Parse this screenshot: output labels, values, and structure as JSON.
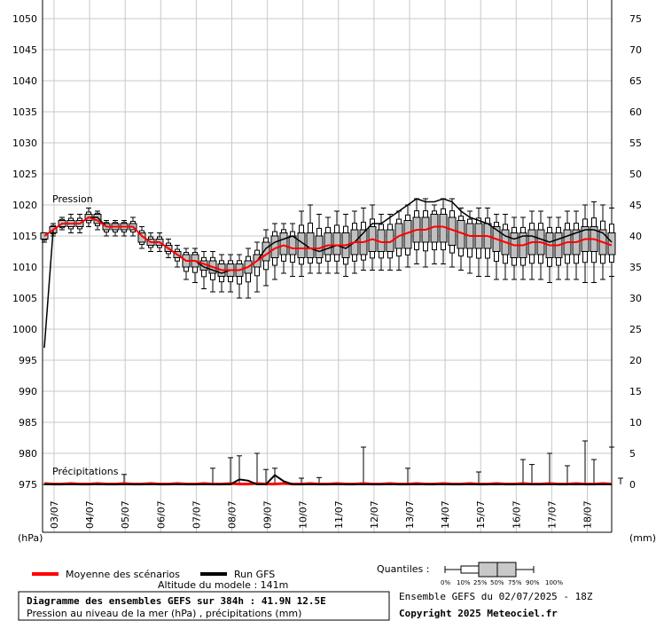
{
  "chart_data": {
    "type": "box-line",
    "pressure_axis": {
      "unit": "(hPa)",
      "min": 975,
      "max": 1050,
      "ticks": [
        975,
        980,
        985,
        990,
        995,
        1000,
        1005,
        1010,
        1015,
        1020,
        1025,
        1030,
        1035,
        1040,
        1045,
        1050
      ]
    },
    "precip_axis": {
      "unit": "(mm)",
      "min": 0,
      "max": 75,
      "ticks": [
        0,
        5,
        10,
        15,
        20,
        25,
        30,
        35,
        40,
        45,
        50,
        55,
        60,
        65,
        70,
        75
      ]
    },
    "date_labels": [
      "03/07",
      "04/07",
      "05/07",
      "06/07",
      "07/07",
      "08/07",
      "09/07",
      "10/07",
      "11/07",
      "12/07",
      "13/07",
      "14/07",
      "15/07",
      "16/07",
      "17/07",
      "18/07"
    ],
    "panel_labels": {
      "pressure": "Pression",
      "precip": "Précipitations"
    },
    "series": [
      {
        "name": "Moyenne des scénarios",
        "color": "#ff0000"
      },
      {
        "name": "Run GFS",
        "color": "#000000"
      }
    ],
    "gfs_pressure": [
      997,
      1016,
      1017,
      1017,
      1017,
      1018,
      1018,
      1016.5,
      1016.5,
      1016.5,
      1016.5,
      1015,
      1014,
      1014,
      1013,
      1012,
      1011,
      1011,
      1010,
      1009.5,
      1009,
      1009.5,
      1009.5,
      1010,
      1011,
      1013,
      1014,
      1014.5,
      1015,
      1014,
      1013,
      1012.5,
      1013,
      1013.5,
      1013,
      1014,
      1015.5,
      1017,
      1017,
      1018,
      1019,
      1020,
      1021,
      1020.5,
      1020.5,
      1021,
      1020.5,
      1019,
      1018,
      1017.5,
      1017,
      1016,
      1015,
      1014.5,
      1015,
      1015,
      1014.5,
      1014,
      1014.5,
      1015,
      1015.5,
      1016,
      1016,
      1015.5,
      1014
    ],
    "mean_pressure": [
      1015,
      1016,
      1017,
      1017,
      1017,
      1018,
      1017.5,
      1016.5,
      1016.5,
      1016.5,
      1016.5,
      1015,
      1014,
      1014,
      1013,
      1012,
      1011,
      1011,
      1010.5,
      1010,
      1009.5,
      1009.5,
      1009.5,
      1010,
      1011,
      1012,
      1013,
      1013.5,
      1013,
      1013,
      1013,
      1013,
      1013.5,
      1013.5,
      1013.5,
      1014,
      1014,
      1014.5,
      1014,
      1014,
      1015,
      1015.5,
      1016,
      1016,
      1016.5,
      1016.5,
      1016,
      1015.5,
      1015,
      1015,
      1015,
      1014.5,
      1014,
      1013.5,
      1013.5,
      1014,
      1014,
      1013.5,
      1013.5,
      1014,
      1014,
      1014.5,
      1014.5,
      1014,
      1013.5
    ],
    "box_q25": [
      1014.5,
      1015.5,
      1016.5,
      1016.5,
      1016.5,
      1017.5,
      1017,
      1016,
      1016,
      1016,
      1016,
      1014,
      1013.5,
      1013.5,
      1012.5,
      1011.5,
      1010,
      1010,
      1009.5,
      1009,
      1008.5,
      1008.5,
      1008.5,
      1009,
      1010,
      1011,
      1011.5,
      1012,
      1012,
      1011.5,
      1011.5,
      1011.5,
      1012,
      1012,
      1011.5,
      1012,
      1012,
      1012.5,
      1012.5,
      1012.5,
      1013,
      1013,
      1014,
      1014,
      1014,
      1014,
      1013.5,
      1013,
      1013,
      1013,
      1013,
      1012.5,
      1012,
      1011.5,
      1011.5,
      1012,
      1012,
      1011.5,
      1011.5,
      1012,
      1012,
      1012.5,
      1012.5,
      1012,
      1012
    ],
    "box_q75": [
      1015.5,
      1016.5,
      1017.5,
      1017.5,
      1017.5,
      1018.5,
      1018.5,
      1017,
      1017,
      1017,
      1017,
      1015.5,
      1014.5,
      1014.5,
      1013.5,
      1012.5,
      1012,
      1012,
      1011,
      1011,
      1010.5,
      1010.5,
      1010.5,
      1011,
      1012,
      1014,
      1015,
      1015.5,
      1015,
      1015.5,
      1015.5,
      1015,
      1015.5,
      1015.5,
      1015.5,
      1016,
      1016,
      1016.5,
      1016,
      1016,
      1017,
      1017.5,
      1018,
      1018,
      1018.5,
      1018.5,
      1018,
      1017.5,
      1017,
      1017,
      1017,
      1016.5,
      1016,
      1015.5,
      1015.5,
      1016,
      1016,
      1015.5,
      1015.5,
      1016,
      1016,
      1016.5,
      1016.5,
      1016,
      1015.5
    ],
    "whisker_min": [
      1014,
      1015,
      1016,
      1015.5,
      1015.5,
      1016.5,
      1016,
      1015,
      1015,
      1015,
      1015,
      1013,
      1012.5,
      1012.5,
      1011.5,
      1010,
      1008,
      1007.5,
      1006.5,
      1006,
      1006,
      1006,
      1005,
      1005,
      1006,
      1007,
      1008,
      1009,
      1008.5,
      1008.5,
      1009,
      1009,
      1009,
      1009,
      1008.5,
      1009,
      1009.5,
      1009.5,
      1009.5,
      1009.5,
      1009.5,
      1010,
      1010.5,
      1010,
      1010.5,
      1010.5,
      1010,
      1009.5,
      1009,
      1008.5,
      1008.5,
      1008,
      1008,
      1008,
      1008,
      1008,
      1008,
      1007.5,
      1008,
      1008,
      1008,
      1007.5,
      1007.5,
      1008,
      1008.5
    ],
    "whisker_max": [
      1015.5,
      1017,
      1018,
      1018.5,
      1018.5,
      1019.5,
      1019,
      1017.5,
      1017.5,
      1017.5,
      1018,
      1016.5,
      1015.5,
      1015.5,
      1014.5,
      1013.5,
      1013,
      1013,
      1012.5,
      1012.5,
      1012,
      1012,
      1012,
      1013,
      1014,
      1016,
      1017,
      1017,
      1017,
      1019,
      1020,
      1018.5,
      1018,
      1019,
      1018.5,
      1019,
      1019.5,
      1020,
      1018.5,
      1018.5,
      1019,
      1020,
      1021,
      1021,
      1020,
      1021,
      1021,
      1019.5,
      1019,
      1019.5,
      1019.5,
      1018.5,
      1018.5,
      1018,
      1018,
      1019,
      1019,
      1018,
      1018,
      1019,
      1019,
      1020,
      1020.5,
      1020,
      1019.5
    ],
    "precip_bars": [
      {
        "i": 9,
        "v": 1.6
      },
      {
        "i": 19,
        "v": 2.6
      },
      {
        "i": 21,
        "v": 4.3
      },
      {
        "i": 22,
        "v": 4.6
      },
      {
        "i": 24,
        "v": 5.0
      },
      {
        "i": 25,
        "v": 2.4
      },
      {
        "i": 26,
        "v": 2.6
      },
      {
        "i": 29,
        "v": 1.0
      },
      {
        "i": 31,
        "v": 1.1
      },
      {
        "i": 36,
        "v": 6.0
      },
      {
        "i": 41,
        "v": 2.6
      },
      {
        "i": 49,
        "v": 2.0
      },
      {
        "i": 54,
        "v": 4.0
      },
      {
        "i": 55,
        "v": 3.2
      },
      {
        "i": 57,
        "v": 5.0
      },
      {
        "i": 59,
        "v": 3.0
      },
      {
        "i": 61,
        "v": 7.0
      },
      {
        "i": 62,
        "v": 4.0
      },
      {
        "i": 64,
        "v": 6.0
      },
      {
        "i": 65,
        "v": 1.0
      }
    ],
    "gfs_precip_bumps": [
      {
        "i": 22,
        "v": 0.8
      },
      {
        "i": 23,
        "v": 0.6
      },
      {
        "i": 26,
        "v": 1.5
      },
      {
        "i": 27,
        "v": 0.5
      }
    ]
  },
  "legend": {
    "mean_label": "Moyenne des scénarios",
    "gfs_label": "Run GFS",
    "altitude": "Altitude du modele : 141m",
    "quantiles_title": "Quantiles :",
    "quantile_labels": [
      "0%",
      "10%",
      "25%",
      "50%",
      "75%",
      "90%",
      "100%"
    ]
  },
  "info": {
    "title": "Diagramme des ensembles GEFS sur 384h : 41.9N 12.5E",
    "subtitle": "Pression au niveau de la mer (hPa) , précipitations (mm)",
    "ensemble": "Ensemble GEFS du 02/07/2025 - 18Z",
    "copyright": "Copyright 2025 Meteociel.fr"
  }
}
